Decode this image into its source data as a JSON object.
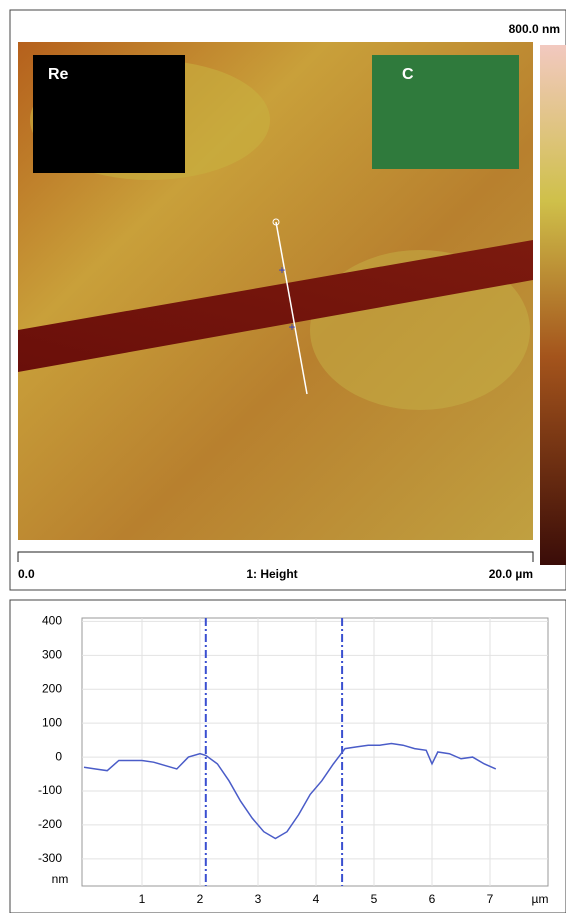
{
  "image": {
    "scale_max": "800.0 nm",
    "insets": [
      "Re",
      "C"
    ],
    "scale_start": "0.0",
    "channel": "1: Height",
    "scale_end": "20.0 µm"
  },
  "chart_data": {
    "type": "line",
    "x": [
      0,
      0.2,
      0.4,
      0.6,
      0.8,
      1.0,
      1.2,
      1.4,
      1.6,
      1.8,
      2.0,
      2.1,
      2.3,
      2.5,
      2.7,
      2.9,
      3.1,
      3.3,
      3.5,
      3.7,
      3.9,
      4.1,
      4.3,
      4.5,
      4.7,
      4.9,
      5.1,
      5.3,
      5.5,
      5.7,
      5.9,
      6.0,
      6.1,
      6.3,
      6.5,
      6.7,
      6.9,
      7.1
    ],
    "series": [
      {
        "color": "#4a5cc8",
        "values": [
          -30,
          -35,
          -40,
          -10,
          -10,
          -10,
          -15,
          -25,
          -35,
          0,
          10,
          5,
          -20,
          -70,
          -130,
          -180,
          -220,
          -240,
          -220,
          -170,
          -110,
          -70,
          -20,
          25,
          30,
          35,
          35,
          40,
          35,
          25,
          20,
          -20,
          15,
          10,
          -5,
          0,
          -20,
          -35
        ]
      }
    ],
    "cursors": [
      2.1,
      4.45
    ],
    "cursor_color": "#3a4fd0",
    "xlim": [
      0,
      8
    ],
    "xticks": [
      1,
      2,
      3,
      4,
      5,
      6,
      7
    ],
    "ylim": [
      -380,
      410
    ],
    "yticks": [
      400,
      300,
      200,
      100,
      0,
      -100,
      -200,
      -300
    ],
    "x_unit": "µm",
    "y_unit": "nm",
    "grid": true
  }
}
